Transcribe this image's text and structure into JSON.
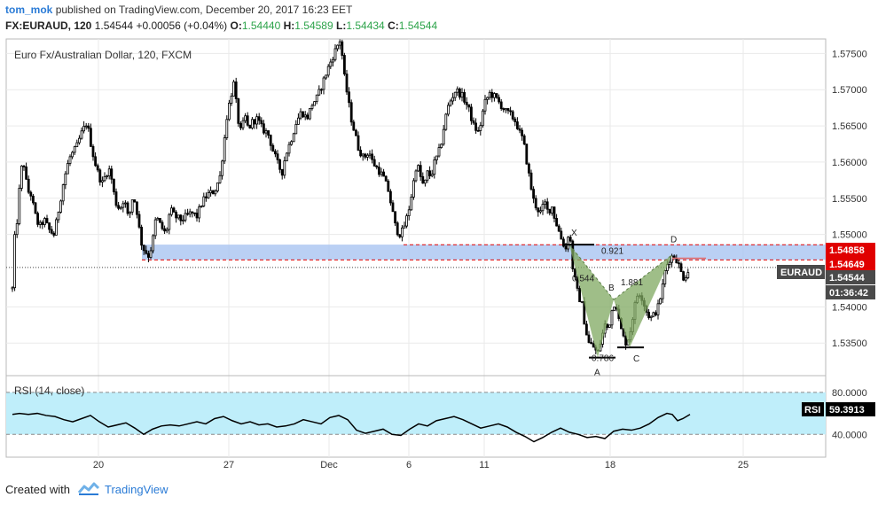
{
  "header": {
    "author": "tom_mok",
    "published_text": "published on TradingView.com, December 20, 2017 16:23 EET",
    "symbol": "FX:EURAUD, 120",
    "last": "1.54544",
    "change": "+0.00056 (+0.04%)",
    "o_label": "O:",
    "o_value": "1.54440",
    "h_label": "H:",
    "h_value": "1.54589",
    "l_label": "L:",
    "l_value": "1.54434",
    "c_label": "C:",
    "c_value": "1.54544"
  },
  "footer": {
    "created_with": "Created with",
    "brand": "TradingView"
  },
  "colors": {
    "bull": "#000000",
    "zone": "#aec8f2",
    "resistance": "#e00000",
    "pattern": "#7fa860",
    "rsi_band": "#bfeefa",
    "rsi_line": "#000000",
    "brand": "#2a7bd6",
    "grid": "#eaeaea"
  },
  "chart_data": {
    "type": "candlestick",
    "title": "Euro Fx/Australian Dollar, 120, FXCM",
    "x_tick_labels": [
      "20",
      "27",
      "Dec",
      "6",
      "11",
      "18",
      "25"
    ],
    "y_tick_labels": [
      "1.57500",
      "1.57000",
      "1.56500",
      "1.56000",
      "1.55500",
      "1.55000",
      "1.54000",
      "1.53500"
    ],
    "ylim": [
      1.5305,
      1.577
    ],
    "price_path": [
      [
        0,
        1.5425
      ],
      [
        2,
        1.549
      ],
      [
        5,
        1.5515
      ],
      [
        9,
        1.558
      ],
      [
        12,
        1.5605
      ],
      [
        17,
        1.556
      ],
      [
        21,
        1.5555
      ],
      [
        25,
        1.553
      ],
      [
        30,
        1.551
      ],
      [
        36,
        1.552
      ],
      [
        42,
        1.5505
      ],
      [
        47,
        1.55
      ],
      [
        53,
        1.554
      ],
      [
        58,
        1.5575
      ],
      [
        64,
        1.5605
      ],
      [
        72,
        1.562
      ],
      [
        78,
        1.564
      ],
      [
        84,
        1.5655
      ],
      [
        90,
        1.5615
      ],
      [
        95,
        1.559
      ],
      [
        101,
        1.557
      ],
      [
        106,
        1.5585
      ],
      [
        110,
        1.559
      ],
      [
        116,
        1.5545
      ],
      [
        121,
        1.5535
      ],
      [
        126,
        1.555
      ],
      [
        131,
        1.552
      ],
      [
        136,
        1.5555
      ],
      [
        140,
        1.5535
      ],
      [
        145,
        1.549
      ],
      [
        148,
        1.548
      ],
      [
        152,
        1.5473
      ],
      [
        154,
        1.547
      ],
      [
        158,
        1.549
      ],
      [
        162,
        1.5525
      ],
      [
        168,
        1.551
      ],
      [
        173,
        1.55
      ],
      [
        178,
        1.5535
      ],
      [
        183,
        1.5525
      ],
      [
        190,
        1.552
      ],
      [
        196,
        1.5525
      ],
      [
        202,
        1.553
      ],
      [
        208,
        1.5525
      ],
      [
        214,
        1.5545
      ],
      [
        220,
        1.5555
      ],
      [
        228,
        1.556
      ],
      [
        234,
        1.558
      ],
      [
        238,
        1.562
      ],
      [
        242,
        1.5665
      ],
      [
        246,
        1.569
      ],
      [
        250,
        1.571
      ],
      [
        254,
        1.566
      ],
      [
        258,
        1.564
      ],
      [
        262,
        1.5665
      ],
      [
        266,
        1.5645
      ],
      [
        270,
        1.5655
      ],
      [
        276,
        1.566
      ],
      [
        282,
        1.5645
      ],
      [
        288,
        1.564
      ],
      [
        294,
        1.5615
      ],
      [
        300,
        1.5595
      ],
      [
        304,
        1.5585
      ],
      [
        308,
        1.561
      ],
      [
        314,
        1.563
      ],
      [
        320,
        1.5655
      ],
      [
        326,
        1.567
      ],
      [
        332,
        1.566
      ],
      [
        338,
        1.568
      ],
      [
        344,
        1.569
      ],
      [
        350,
        1.571
      ],
      [
        356,
        1.573
      ],
      [
        361,
        1.5745
      ],
      [
        366,
        1.576
      ],
      [
        370,
        1.577
      ],
      [
        374,
        1.572
      ],
      [
        378,
        1.569
      ],
      [
        382,
        1.566
      ],
      [
        386,
        1.564
      ],
      [
        390,
        1.562
      ],
      [
        396,
        1.5605
      ],
      [
        402,
        1.5615
      ],
      [
        406,
        1.56
      ],
      [
        412,
        1.559
      ],
      [
        418,
        1.558
      ],
      [
        424,
        1.556
      ],
      [
        428,
        1.5535
      ],
      [
        432,
        1.551
      ],
      [
        436,
        1.55
      ],
      [
        440,
        1.5505
      ],
      [
        444,
        1.552
      ],
      [
        448,
        1.554
      ],
      [
        452,
        1.557
      ],
      [
        456,
        1.56
      ],
      [
        460,
        1.558
      ],
      [
        464,
        1.5565
      ],
      [
        468,
        1.5585
      ],
      [
        472,
        1.558
      ],
      [
        476,
        1.56
      ],
      [
        480,
        1.561
      ],
      [
        484,
        1.563
      ],
      [
        488,
        1.566
      ],
      [
        492,
        1.568
      ],
      [
        496,
        1.569
      ],
      [
        500,
        1.57
      ],
      [
        504,
        1.5695
      ],
      [
        508,
        1.569
      ],
      [
        514,
        1.5675
      ],
      [
        520,
        1.565
      ],
      [
        526,
        1.564
      ],
      [
        532,
        1.568
      ],
      [
        538,
        1.5695
      ],
      [
        544,
        1.569
      ],
      [
        550,
        1.568
      ],
      [
        556,
        1.567
      ],
      [
        562,
        1.5665
      ],
      [
        568,
        1.5655
      ],
      [
        572,
        1.564
      ],
      [
        576,
        1.563
      ],
      [
        580,
        1.56
      ],
      [
        584,
        1.557
      ],
      [
        588,
        1.5545
      ],
      [
        592,
        1.5535
      ],
      [
        596,
        1.553
      ],
      [
        600,
        1.5545
      ],
      [
        604,
        1.553
      ],
      [
        608,
        1.554
      ],
      [
        612,
        1.552
      ],
      [
        616,
        1.5505
      ],
      [
        620,
        1.549
      ],
      [
        624,
        1.548
      ],
      [
        628,
        1.551
      ],
      [
        631,
        1.546
      ],
      [
        634,
        1.544
      ],
      [
        638,
        1.5415
      ],
      [
        642,
        1.5405
      ],
      [
        646,
        1.537
      ],
      [
        650,
        1.535
      ],
      [
        655,
        1.5345
      ],
      [
        660,
        1.5335
      ],
      [
        664,
        1.5355
      ],
      [
        668,
        1.5375
      ],
      [
        672,
        1.537
      ],
      [
        676,
        1.5395
      ],
      [
        680,
        1.541
      ],
      [
        684,
        1.538
      ],
      [
        688,
        1.536
      ],
      [
        692,
        1.535
      ],
      [
        696,
        1.5362
      ],
      [
        700,
        1.539
      ],
      [
        704,
        1.5415
      ],
      [
        708,
        1.542
      ],
      [
        712,
        1.5405
      ],
      [
        716,
        1.539
      ],
      [
        720,
        1.5385
      ],
      [
        724,
        1.539
      ],
      [
        728,
        1.54
      ],
      [
        732,
        1.542
      ],
      [
        736,
        1.545
      ],
      [
        740,
        1.5465
      ],
      [
        744,
        1.547
      ],
      [
        748,
        1.5468
      ],
      [
        752,
        1.5455
      ],
      [
        756,
        1.544
      ],
      [
        760,
        1.5445
      ],
      [
        764,
        1.5454
      ]
    ],
    "rsi_path": [
      [
        0,
        59
      ],
      [
        8,
        60
      ],
      [
        18,
        59
      ],
      [
        28,
        60
      ],
      [
        38,
        58
      ],
      [
        48,
        57
      ],
      [
        58,
        54
      ],
      [
        68,
        52
      ],
      [
        78,
        55
      ],
      [
        88,
        58
      ],
      [
        98,
        52
      ],
      [
        108,
        47
      ],
      [
        118,
        49
      ],
      [
        128,
        51
      ],
      [
        138,
        46
      ],
      [
        148,
        40
      ],
      [
        158,
        45
      ],
      [
        168,
        48
      ],
      [
        178,
        49
      ],
      [
        188,
        48
      ],
      [
        198,
        50
      ],
      [
        208,
        52
      ],
      [
        218,
        50
      ],
      [
        228,
        55
      ],
      [
        238,
        57
      ],
      [
        248,
        53
      ],
      [
        258,
        50
      ],
      [
        268,
        52
      ],
      [
        278,
        49
      ],
      [
        288,
        50
      ],
      [
        298,
        47
      ],
      [
        308,
        48
      ],
      [
        318,
        50
      ],
      [
        328,
        54
      ],
      [
        338,
        52
      ],
      [
        348,
        50
      ],
      [
        358,
        56
      ],
      [
        368,
        58
      ],
      [
        378,
        54
      ],
      [
        388,
        44
      ],
      [
        398,
        41
      ],
      [
        408,
        43
      ],
      [
        418,
        45
      ],
      [
        428,
        40
      ],
      [
        438,
        39
      ],
      [
        448,
        45
      ],
      [
        458,
        50
      ],
      [
        468,
        48
      ],
      [
        478,
        53
      ],
      [
        488,
        55
      ],
      [
        498,
        57
      ],
      [
        508,
        54
      ],
      [
        518,
        50
      ],
      [
        528,
        46
      ],
      [
        538,
        48
      ],
      [
        548,
        50
      ],
      [
        558,
        47
      ],
      [
        568,
        42
      ],
      [
        578,
        38
      ],
      [
        588,
        33
      ],
      [
        598,
        37
      ],
      [
        608,
        42
      ],
      [
        618,
        46
      ],
      [
        628,
        42
      ],
      [
        638,
        40
      ],
      [
        648,
        37
      ],
      [
        658,
        38
      ],
      [
        668,
        36
      ],
      [
        678,
        43
      ],
      [
        688,
        45
      ],
      [
        698,
        44
      ],
      [
        708,
        46
      ],
      [
        718,
        50
      ],
      [
        728,
        56
      ],
      [
        738,
        60
      ],
      [
        744,
        59
      ],
      [
        750,
        53
      ],
      [
        756,
        55
      ],
      [
        764,
        59
      ]
    ],
    "rsi_levels": [
      40,
      80
    ],
    "support_zone": [
      1.5465,
      1.5486
    ],
    "resistance_lines": [
      1.54858,
      1.54649
    ],
    "pattern": {
      "X": [
        628,
        1.5486
      ],
      "A": [
        660,
        1.533
      ],
      "B": [
        678,
        1.541
      ],
      "C": [
        696,
        1.5344
      ],
      "D": [
        744,
        1.5472
      ]
    },
    "labels": {
      "x": "X",
      "a": "A",
      "b": "B",
      "c": "C",
      "d": "D",
      "r921": "0.921",
      "r544": "0.544",
      "r881": "1.881",
      "r786": "0.786"
    },
    "price_labels": {
      "res_upper": "1.54858",
      "res_lower": "1.54649",
      "symbol": "EURAUD",
      "last": "1.54544",
      "countdown": "01:36:42"
    },
    "rsi": {
      "label": "RSI (14, close)",
      "tag": "RSI",
      "value": "59.3913",
      "ticks": [
        "80.0000",
        "40.0000"
      ]
    }
  }
}
